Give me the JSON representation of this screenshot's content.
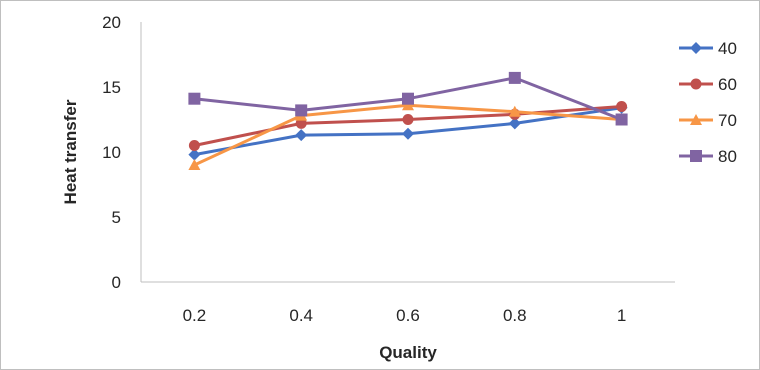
{
  "chart_data": {
    "type": "line",
    "title": "",
    "xlabel": "Quality",
    "ylabel": "Heat transfer",
    "categories": [
      "0.2",
      "0.4",
      "0.6",
      "0.8",
      "1"
    ],
    "ylim": [
      0,
      20
    ],
    "yticks": [
      "0",
      "5",
      "10",
      "15",
      "20"
    ],
    "grid": false,
    "legend": "right",
    "series": [
      {
        "name": "40",
        "marker": "diamond",
        "color": "#4472C4",
        "values": [
          9.8,
          11.3,
          11.4,
          12.2,
          13.4
        ]
      },
      {
        "name": "60",
        "marker": "circle",
        "color": "#C0504D",
        "values": [
          10.5,
          12.2,
          12.5,
          12.9,
          13.5
        ]
      },
      {
        "name": "70",
        "marker": "triangle",
        "color": "#F79646",
        "values": [
          9.0,
          12.8,
          13.6,
          13.1,
          12.5
        ]
      },
      {
        "name": "80",
        "marker": "square",
        "color": "#8064A2",
        "values": [
          14.1,
          13.2,
          14.1,
          15.7,
          12.5
        ]
      }
    ]
  }
}
